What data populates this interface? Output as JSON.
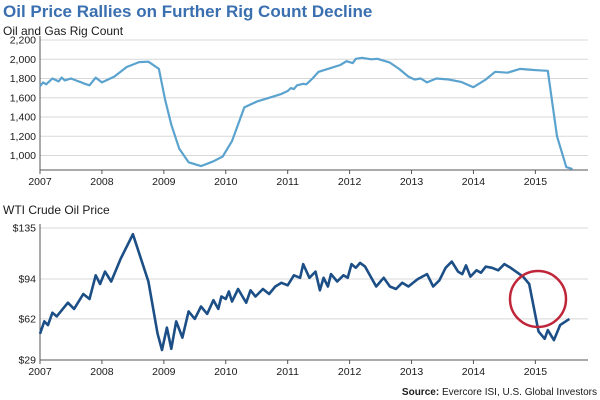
{
  "title": "Oil Price Rallies on Further Rig Count Decline",
  "source_label": "Source:",
  "source_text": "Evercore ISI, U.S. Global Investors",
  "colors": {
    "title": "#3a6fb0",
    "rig_line": "#5ba3cf",
    "oil_line": "#1c4f86",
    "highlight_circle": "#c0263a"
  },
  "chart_data": [
    {
      "type": "line",
      "title": "Oil and Gas Rig Count",
      "xlabel": "",
      "ylabel": "",
      "xlim": [
        2007.0,
        2015.85
      ],
      "ylim": [
        850,
        2200
      ],
      "x_ticks": [
        "2007",
        "2008",
        "2009",
        "2010",
        "2011",
        "2012",
        "2013",
        "2014",
        "2015"
      ],
      "y_ticks": [
        "1,000",
        "1,200",
        "1,400",
        "1,600",
        "1,800",
        "2,000",
        "2,200"
      ],
      "y_tick_values": [
        1000,
        1200,
        1400,
        1600,
        1800,
        2000,
        2200
      ],
      "grid": true,
      "series": [
        {
          "x": [
            2007.0,
            2007.05,
            2007.1,
            2007.2,
            2007.3,
            2007.35,
            2007.4,
            2007.5,
            2007.6,
            2007.65,
            2007.7,
            2007.8,
            2007.9,
            2008.0,
            2008.2,
            2008.4,
            2008.6,
            2008.75,
            2008.92,
            2009.02,
            2009.12,
            2009.25,
            2009.4,
            2009.6,
            2009.8,
            2009.95,
            2010.1,
            2010.3,
            2010.5,
            2010.7,
            2010.9,
            2011.0,
            2011.05,
            2011.1,
            2011.15,
            2011.25,
            2011.3,
            2011.4,
            2011.5,
            2011.7,
            2011.85,
            2011.95,
            2012.05,
            2012.1,
            2012.2,
            2012.35,
            2012.45,
            2012.55,
            2012.65,
            2012.8,
            2012.95,
            2013.05,
            2013.15,
            2013.25,
            2013.4,
            2013.6,
            2013.8,
            2014.0,
            2014.2,
            2014.35,
            2014.55,
            2014.75,
            2014.95,
            2015.05,
            2015.2,
            2015.35,
            2015.5,
            2015.6
          ],
          "values": [
            1720,
            1760,
            1740,
            1800,
            1770,
            1810,
            1780,
            1800,
            1775,
            1765,
            1750,
            1730,
            1810,
            1760,
            1820,
            1920,
            1970,
            1975,
            1900,
            1580,
            1320,
            1070,
            930,
            890,
            940,
            990,
            1150,
            1500,
            1560,
            1600,
            1640,
            1670,
            1700,
            1690,
            1730,
            1745,
            1740,
            1800,
            1870,
            1910,
            1940,
            1980,
            1960,
            2005,
            2015,
            2000,
            2005,
            1985,
            1965,
            1900,
            1820,
            1790,
            1800,
            1760,
            1800,
            1790,
            1765,
            1710,
            1790,
            1870,
            1860,
            1900,
            1890,
            1885,
            1880,
            1200,
            880,
            860
          ]
        }
      ]
    },
    {
      "type": "line",
      "title": "WTI Crude Oil Price",
      "xlabel": "",
      "ylabel": "",
      "xlim": [
        2007.0,
        2015.85
      ],
      "ylim": [
        29,
        135
      ],
      "x_ticks": [
        "2007",
        "2008",
        "2009",
        "2010",
        "2011",
        "2012",
        "2013",
        "2014",
        "2015"
      ],
      "y_ticks": [
        "$29",
        "$62",
        "$94",
        "$135"
      ],
      "y_tick_values": [
        29,
        62,
        94,
        135
      ],
      "grid": true,
      "annotations": [
        "red circle around the 2015 price trough"
      ],
      "series": [
        {
          "x": [
            2007.0,
            2007.07,
            2007.13,
            2007.2,
            2007.27,
            2007.45,
            2007.55,
            2007.7,
            2007.8,
            2007.9,
            2007.97,
            2008.05,
            2008.15,
            2008.3,
            2008.5,
            2008.75,
            2008.9,
            2008.97,
            2009.05,
            2009.12,
            2009.2,
            2009.3,
            2009.4,
            2009.5,
            2009.6,
            2009.7,
            2009.8,
            2009.88,
            2009.93,
            2010.0,
            2010.05,
            2010.1,
            2010.2,
            2010.27,
            2010.33,
            2010.4,
            2010.48,
            2010.6,
            2010.7,
            2010.8,
            2010.9,
            2011.0,
            2011.1,
            2011.2,
            2011.25,
            2011.35,
            2011.45,
            2011.52,
            2011.58,
            2011.65,
            2011.7,
            2011.8,
            2011.9,
            2011.97,
            2012.03,
            2012.1,
            2012.17,
            2012.25,
            2012.35,
            2012.43,
            2012.55,
            2012.65,
            2012.75,
            2012.85,
            2012.95,
            2013.1,
            2013.25,
            2013.35,
            2013.45,
            2013.55,
            2013.65,
            2013.75,
            2013.82,
            2013.88,
            2013.95,
            2014.05,
            2014.12,
            2014.2,
            2014.3,
            2014.4,
            2014.5,
            2014.6,
            2014.8,
            2014.9,
            2015.05,
            2015.15,
            2015.2,
            2015.3,
            2015.4,
            2015.55
          ],
          "values": [
            50,
            60,
            57,
            67,
            64,
            75,
            70,
            82,
            78,
            97,
            90,
            100,
            92,
            110,
            130,
            92,
            50,
            37,
            55,
            38,
            60,
            47,
            68,
            62,
            72,
            66,
            77,
            70,
            80,
            78,
            84,
            76,
            86,
            80,
            75,
            85,
            80,
            86,
            82,
            88,
            91,
            89,
            97,
            95,
            106,
            95,
            100,
            85,
            95,
            88,
            98,
            92,
            97,
            95,
            106,
            103,
            107,
            104,
            95,
            88,
            95,
            88,
            86,
            91,
            88,
            94,
            98,
            88,
            93,
            103,
            108,
            100,
            98,
            105,
            96,
            101,
            99,
            104,
            103,
            101,
            106,
            103,
            96,
            90,
            52,
            46,
            53,
            45,
            57,
            62
          ]
        }
      ]
    }
  ]
}
